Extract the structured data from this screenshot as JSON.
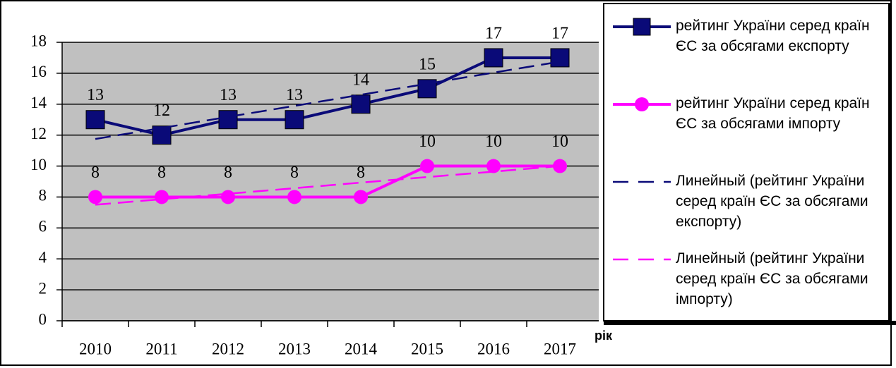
{
  "chart_data": {
    "type": "line",
    "x_label": "рік",
    "categories": [
      "2010",
      "2011",
      "2012",
      "2013",
      "2014",
      "2015",
      "2016",
      "2017"
    ],
    "ylim": [
      0,
      18
    ],
    "yticks": [
      0,
      2,
      4,
      6,
      8,
      10,
      12,
      14,
      16,
      18
    ],
    "grid": true,
    "series": [
      {
        "name": "рейтинг України серед країн ЄС за обсягами експорту",
        "color": "#0a0a78",
        "marker": "square",
        "values": [
          13,
          12,
          13,
          13,
          14,
          15,
          17,
          17
        ]
      },
      {
        "name": "рейтинг України серед країн ЄС за обсягами імпорту",
        "color": "#ff00ff",
        "marker": "circle",
        "values": [
          8,
          8,
          8,
          8,
          8,
          10,
          10,
          10
        ]
      },
      {
        "name": "Линейный (рейтинг України серед країн ЄС за обсягами експорту)",
        "color": "#0a0a78",
        "dashed": true,
        "values": [
          11.75,
          12.46,
          13.18,
          13.89,
          14.61,
          15.32,
          16.04,
          16.75
        ]
      },
      {
        "name": "Линейный (рейтинг України серед країн ЄС за обсягами імпорту)",
        "color": "#ff00ff",
        "dashed": true,
        "values": [
          7.5,
          7.86,
          8.21,
          8.57,
          8.93,
          9.29,
          9.64,
          10
        ]
      }
    ]
  }
}
